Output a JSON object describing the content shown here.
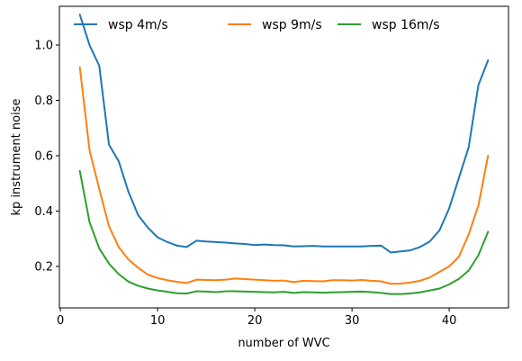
{
  "chart_data": {
    "type": "line",
    "title": "",
    "xlabel": "number of WVC",
    "ylabel": "kp instrument noise",
    "xlim": [
      -0.1,
      46.1
    ],
    "ylim": [
      0.05,
      1.14
    ],
    "xticks": [
      0,
      10,
      20,
      30,
      40
    ],
    "yticks": [
      0.2,
      0.4,
      0.6,
      0.8,
      1.0
    ],
    "xtick_labels": [
      "0",
      "10",
      "20",
      "30",
      "40"
    ],
    "ytick_labels": [
      "0.2",
      "0.4",
      "0.6",
      "0.8",
      "1.0"
    ],
    "grid": false,
    "legend_position": "top",
    "x": [
      2,
      3,
      4,
      5,
      6,
      7,
      8,
      9,
      10,
      11,
      12,
      13,
      14,
      15,
      16,
      17,
      18,
      19,
      20,
      21,
      22,
      23,
      24,
      25,
      26,
      27,
      28,
      29,
      30,
      31,
      32,
      33,
      34,
      35,
      36,
      37,
      38,
      39,
      40,
      41,
      42,
      43,
      44
    ],
    "series": [
      {
        "name": "wsp 4m/s",
        "color": "#1f77b4",
        "values": [
          1.11,
          1.0,
          0.925,
          0.64,
          0.58,
          0.47,
          0.385,
          0.34,
          0.305,
          0.288,
          0.275,
          0.27,
          0.293,
          0.29,
          0.288,
          0.286,
          0.283,
          0.281,
          0.277,
          0.279,
          0.277,
          0.276,
          0.272,
          0.273,
          0.274,
          0.272,
          0.272,
          0.272,
          0.272,
          0.272,
          0.274,
          0.275,
          0.25,
          0.254,
          0.258,
          0.27,
          0.29,
          0.33,
          0.41,
          0.52,
          0.63,
          0.855,
          0.945
        ]
      },
      {
        "name": "wsp 9m/s",
        "color": "#ff7f0e",
        "values": [
          0.92,
          0.62,
          0.48,
          0.345,
          0.27,
          0.225,
          0.195,
          0.17,
          0.158,
          0.15,
          0.144,
          0.14,
          0.152,
          0.151,
          0.15,
          0.152,
          0.156,
          0.154,
          0.152,
          0.15,
          0.148,
          0.149,
          0.143,
          0.148,
          0.147,
          0.146,
          0.15,
          0.15,
          0.149,
          0.151,
          0.148,
          0.146,
          0.137,
          0.138,
          0.142,
          0.148,
          0.16,
          0.18,
          0.2,
          0.235,
          0.315,
          0.42,
          0.6
        ]
      },
      {
        "name": "wsp 16m/s",
        "color": "#2ca02c",
        "values": [
          0.545,
          0.36,
          0.265,
          0.21,
          0.172,
          0.145,
          0.13,
          0.12,
          0.113,
          0.108,
          0.103,
          0.102,
          0.11,
          0.109,
          0.107,
          0.11,
          0.11,
          0.109,
          0.108,
          0.107,
          0.106,
          0.108,
          0.104,
          0.107,
          0.106,
          0.105,
          0.106,
          0.107,
          0.108,
          0.109,
          0.107,
          0.104,
          0.1,
          0.1,
          0.102,
          0.106,
          0.113,
          0.12,
          0.135,
          0.155,
          0.185,
          0.24,
          0.325
        ]
      }
    ]
  }
}
